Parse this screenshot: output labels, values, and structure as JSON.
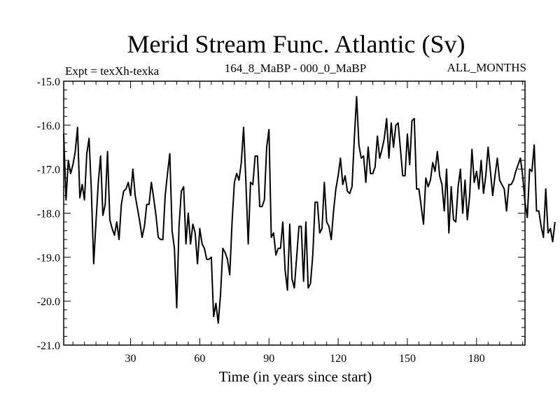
{
  "chart_data": {
    "type": "line",
    "title": "Merid Stream Func. Atlantic (Sv)",
    "subtitle_left": "Expt = texXh-texka",
    "subtitle_center": "164_8_MaBP - 000_0_MaBP",
    "subtitle_right": "ALL_MONTHS",
    "xlabel": "Time (in years since start)",
    "ylabel": "",
    "xlim": [
      1,
      201
    ],
    "ylim": [
      -21.0,
      -15.0
    ],
    "x_ticks": [
      30,
      60,
      90,
      120,
      150,
      180
    ],
    "y_ticks": [
      -15.0,
      -16.0,
      -17.0,
      -18.0,
      -19.0,
      -20.0,
      -21.0
    ],
    "x_tick_labels": [
      "30",
      "60",
      "90",
      "120",
      "150",
      "180"
    ],
    "y_tick_labels": [
      "-15.0",
      "-16.0",
      "-17.0",
      "-18.0",
      "-19.0",
      "-20.0",
      "-21.0"
    ],
    "grid": false,
    "series": [
      {
        "name": "Merid Stream Func. Atlantic",
        "color": "#000000",
        "x_start": 1,
        "x_step": 1,
        "values": [
          -16.2,
          -17.7,
          -16.8,
          -17.1,
          -16.9,
          -16.6,
          -16.05,
          -17.65,
          -17.35,
          -17.7,
          -16.65,
          -16.3,
          -17.5,
          -19.15,
          -18.2,
          -17.3,
          -16.7,
          -18.05,
          -17.8,
          -16.6,
          -18.15,
          -18.35,
          -18.5,
          -18.2,
          -18.6,
          -17.8,
          -17.5,
          -17.45,
          -17.3,
          -17.6,
          -17.0,
          -17.6,
          -17.9,
          -18.2,
          -18.55,
          -18.3,
          -17.8,
          -17.8,
          -17.3,
          -17.65,
          -18.05,
          -18.55,
          -18.6,
          -18.6,
          -17.6,
          -17.1,
          -16.65,
          -18.4,
          -18.8,
          -20.15,
          -18.3,
          -17.5,
          -17.4,
          -18.7,
          -18.0,
          -18.7,
          -18.25,
          -18.45,
          -19.15,
          -18.35,
          -18.7,
          -18.8,
          -19.05,
          -19.05,
          -19.0,
          -20.35,
          -20.05,
          -20.5,
          -19.85,
          -18.8,
          -18.9,
          -19.05,
          -19.4,
          -18.2,
          -17.3,
          -17.1,
          -17.25,
          -16.85,
          -16.05,
          -17.3,
          -18.7,
          -17.3,
          -17.35,
          -16.7,
          -16.7,
          -17.85,
          -17.85,
          -17.7,
          -16.5,
          -16.1,
          -18.55,
          -18.45,
          -18.95,
          -18.8,
          -18.8,
          -18.2,
          -19.3,
          -19.75,
          -18.25,
          -19.5,
          -19.7,
          -19.0,
          -18.3,
          -18.3,
          -19.55,
          -18.2,
          -19.7,
          -19.6,
          -18.95,
          -17.75,
          -17.75,
          -18.45,
          -18.35,
          -17.3,
          -18.2,
          -18.3,
          -18.6,
          -17.95,
          -17.45,
          -17.15,
          -16.75,
          -17.35,
          -17.15,
          -17.5,
          -17.55,
          -17.4,
          -16.3,
          -15.35,
          -16.45,
          -16.75,
          -16.7,
          -17.3,
          -16.5,
          -17.1,
          -17.1,
          -16.95,
          -16.25,
          -16.75,
          -16.55,
          -16.3,
          -15.85,
          -16.75,
          -15.95,
          -16.5,
          -16.0,
          -15.95,
          -16.55,
          -17.15,
          -17.15,
          -16.2,
          -16.9,
          -15.9,
          -15.85,
          -17.45,
          -17.45,
          -17.85,
          -18.25,
          -17.2,
          -17.4,
          -17.25,
          -16.85,
          -17.05,
          -16.6,
          -17.15,
          -17.35,
          -17.95,
          -17.0,
          -18.45,
          -17.4,
          -18.15,
          -18.2,
          -17.4,
          -17.0,
          -18.0,
          -17.25,
          -18.15,
          -17.6,
          -16.55,
          -17.3,
          -17.05,
          -17.45,
          -16.8,
          -17.55,
          -17.15,
          -16.5,
          -17.05,
          -17.6,
          -17.15,
          -16.75,
          -17.25,
          -17.35,
          -17.45,
          -17.95,
          -17.35,
          -17.35,
          -17.25,
          -17.05,
          -16.9,
          -16.75,
          -17.15,
          -17.75,
          -18.1,
          -17.0,
          -17.05,
          -16.45,
          -17.95,
          -17.95,
          -18.3,
          -18.55,
          -17.45,
          -18.45,
          -18.35,
          -18.65,
          -18.2
        ]
      }
    ]
  }
}
